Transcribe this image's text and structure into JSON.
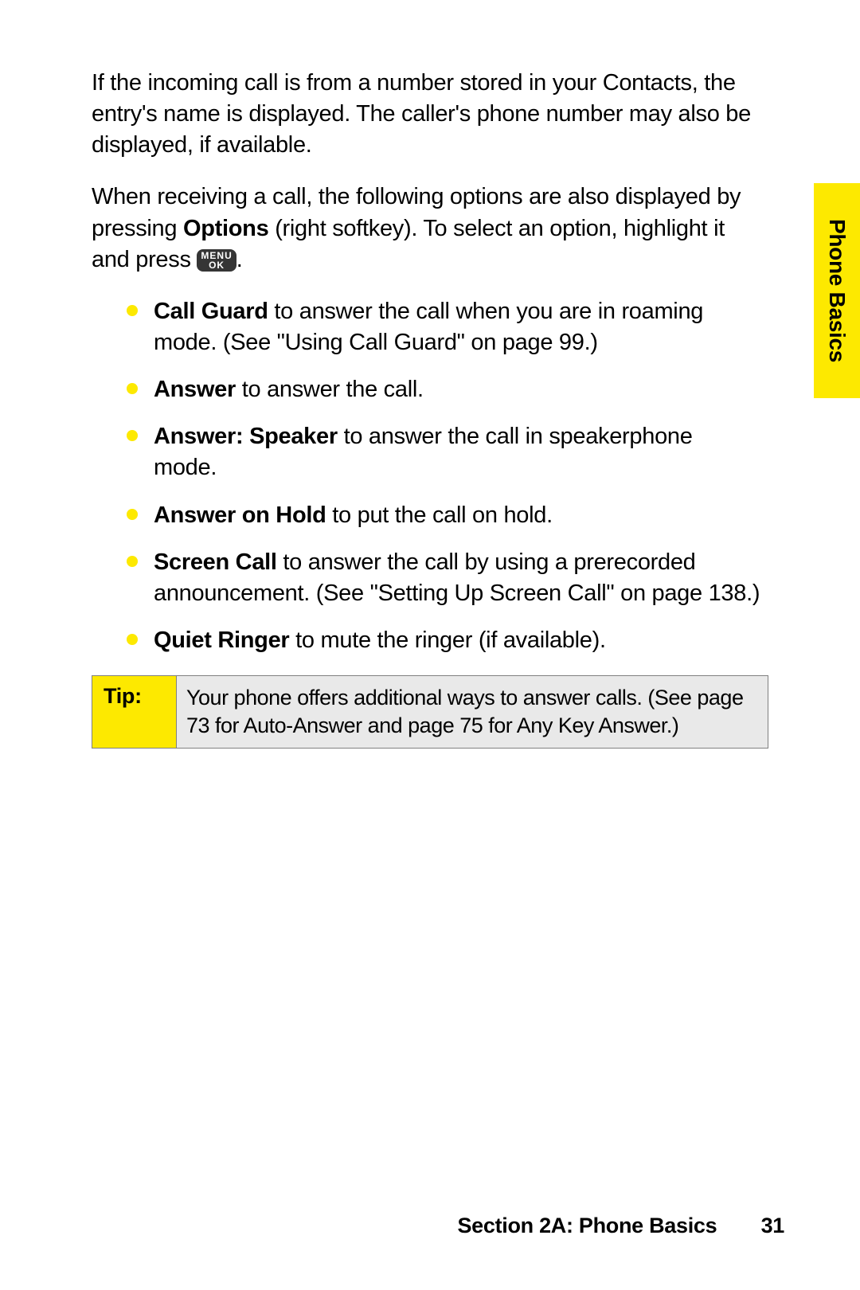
{
  "para1": "If the incoming call is from a number stored in your Contacts, the entry's name is displayed. The caller's phone number may also be displayed, if available.",
  "para2_a": "When receiving a call, the following options are also displayed by pressing ",
  "para2_bold": "Options",
  "para2_b": " (right softkey). To select an option, highlight it and press ",
  "para2_c": ".",
  "menu_key_l1": "MENU",
  "menu_key_l2": "OK",
  "bullets": [
    {
      "bold": "Call Guard",
      "rest": " to answer the call when you are in roaming mode. (See \"Using Call Guard\" on page 99.)"
    },
    {
      "bold": "Answer",
      "rest": " to answer the call."
    },
    {
      "bold": "Answer: Speaker",
      "rest": " to answer the call in speakerphone mode."
    },
    {
      "bold": "Answer on Hold",
      "rest": " to put the call on hold."
    },
    {
      "bold": "Screen Call",
      "rest": " to answer the call by using a prerecorded announcement. (See \"Setting Up Screen Call\" on page 138.)"
    },
    {
      "bold": "Quiet Ringer",
      "rest": " to mute the ringer (if available)."
    }
  ],
  "tip_label": "Tip:",
  "tip_body": "Your phone offers additional ways to answer calls. (See page 73 for Auto-Answer and page 75 for Any Key Answer.)",
  "side_tab": "Phone Basics",
  "footer_section": "Section 2A: Phone Basics",
  "footer_page": "31",
  "colors": {
    "accent": "#fde900",
    "tip_bg": "#e9e9e9",
    "border": "#808080",
    "key_bg": "#353535"
  }
}
